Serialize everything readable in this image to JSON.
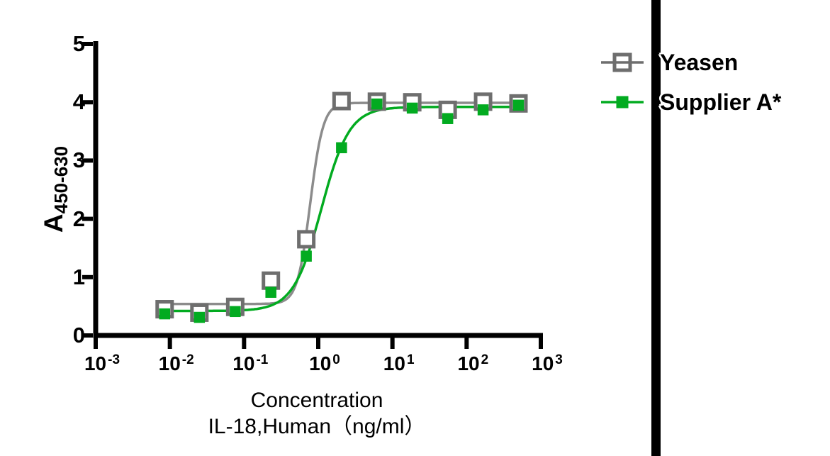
{
  "chart_data": {
    "type": "scatter",
    "subtype": "dose-response-4pl-fit",
    "grid": false,
    "legend_position": "right",
    "x_scale": "log10",
    "x_tick_base": "10",
    "x_tick_exponents": [
      -3,
      -2,
      -1,
      0,
      1,
      2,
      3
    ],
    "y_ticks": [
      "0",
      "1",
      "2",
      "3",
      "4",
      "5"
    ],
    "y_range": [
      0,
      5
    ],
    "x_range": [
      0.001,
      1000
    ],
    "x_axis_title_line1": "Concentration",
    "x_axis_title_line2": "IL-18,Human（ng/ml）",
    "y_axis_label_main": "A",
    "y_axis_label_sub": "450-630",
    "axis_color": "#000000",
    "series": [
      {
        "name": "Yeasen",
        "marker": "open-square",
        "marker_color": "#6E6E6E",
        "curve_color": "#8C8C8C",
        "x_ng_ml": [
          0.0085,
          0.025,
          0.076,
          0.23,
          0.69,
          2.06,
          6.17,
          18.5,
          55.6,
          166.7,
          500
        ],
        "y_a450_630": [
          0.45,
          0.39,
          0.49,
          0.94,
          1.65,
          4.02,
          4.01,
          4.0,
          3.87,
          4.01,
          3.98
        ],
        "fit_4pl": {
          "bottom": 0.54,
          "top": 3.99,
          "ec50": 0.78,
          "hill": 5.0
        }
      },
      {
        "name": "Supplier A*",
        "marker": "filled-square",
        "marker_color": "#02AB20",
        "curve_color": "#02AB20",
        "x_ng_ml": [
          0.0085,
          0.025,
          0.076,
          0.23,
          0.69,
          2.06,
          6.17,
          18.5,
          55.6,
          166.7,
          500
        ],
        "y_a450_630": [
          0.37,
          0.31,
          0.41,
          0.74,
          1.36,
          3.22,
          3.97,
          3.9,
          3.72,
          3.87,
          3.95
        ],
        "fit_4pl": {
          "bottom": 0.42,
          "top": 3.92,
          "ec50": 1.1,
          "hill": 2.3
        }
      }
    ]
  },
  "divider": {
    "color": "#000000"
  }
}
